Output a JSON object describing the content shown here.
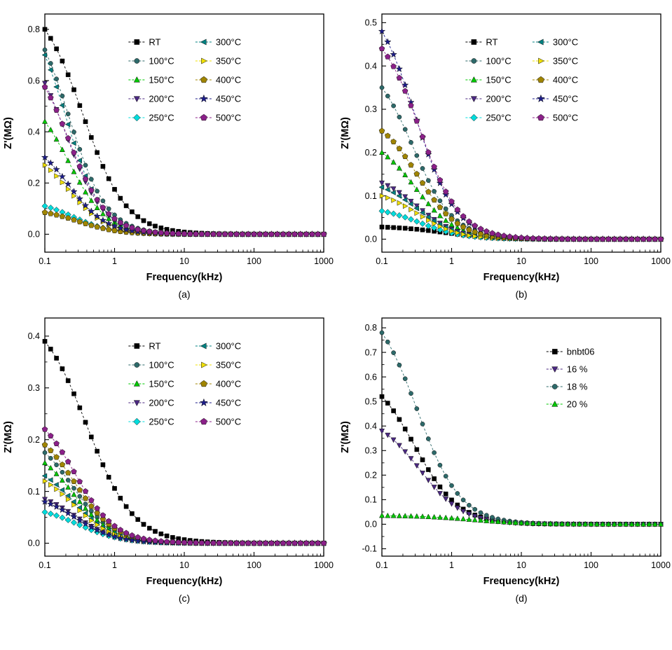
{
  "figure": {
    "description": "Four-panel impedance spectroscopy figure: real impedance Z' (Mohm) versus frequency (kHz, log scale)."
  },
  "chart_data": [
    {
      "type": "line",
      "caption": "(a)",
      "xlabel": "Frequency(kHz)",
      "ylabel": "Z'(MΩ)",
      "x_scale": "log",
      "xlim": [
        0.1,
        1000
      ],
      "ylim": [
        -0.07,
        0.86
      ],
      "xticks": [
        0.1,
        1,
        10,
        100,
        1000
      ],
      "xtick_labels": [
        "0.1",
        "1",
        "10",
        "100",
        "1000"
      ],
      "yticks": [
        0.0,
        0.2,
        0.4,
        0.6,
        0.8
      ],
      "ytick_labels": [
        "0.0",
        "0.2",
        "0.4",
        "0.6",
        "0.8"
      ],
      "legend_position": "upper-center, two columns",
      "curve_model": "z(f) = A/(1+(f/fc)^p), A chosen so z(0.1 kHz) = z0_Mohm; all curves decay to ~0 above ~10 kHz",
      "series": [
        {
          "name": "RT",
          "marker": "square",
          "color": "#000000",
          "z0_Mohm": 0.8,
          "fc_kHz": 0.35,
          "p": 1.4
        },
        {
          "name": "100°C",
          "marker": "circle",
          "color": "#2d6a6a",
          "z0_Mohm": 0.72,
          "fc_kHz": 0.22,
          "p": 1.6
        },
        {
          "name": "150°C",
          "marker": "triangle-up",
          "color": "#00c800",
          "z0_Mohm": 0.44,
          "fc_kHz": 0.22,
          "p": 1.6
        },
        {
          "name": "200°C",
          "marker": "triangle-down",
          "color": "#4b2882",
          "z0_Mohm": 0.59,
          "fc_kHz": 0.2,
          "p": 1.6
        },
        {
          "name": "250°C",
          "marker": "diamond",
          "color": "#00dcdc",
          "z0_Mohm": 0.11,
          "fc_kHz": 0.25,
          "p": 1.5
        },
        {
          "name": "300°C",
          "marker": "triangle-left",
          "color": "#008080",
          "z0_Mohm": 0.7,
          "fc_kHz": 0.2,
          "p": 1.7
        },
        {
          "name": "350°C",
          "marker": "triangle-right",
          "color": "#f0e000",
          "z0_Mohm": 0.27,
          "fc_kHz": 0.22,
          "p": 1.6
        },
        {
          "name": "400°C",
          "marker": "pentagon",
          "color": "#a08500",
          "z0_Mohm": 0.085,
          "fc_kHz": 0.3,
          "p": 1.5
        },
        {
          "name": "450°C",
          "marker": "star",
          "color": "#1c1c8a",
          "z0_Mohm": 0.3,
          "fc_kHz": 0.22,
          "p": 1.6
        },
        {
          "name": "500°C",
          "marker": "pentagon",
          "color": "#8b2089",
          "z0_Mohm": 0.575,
          "fc_kHz": 0.22,
          "p": 1.6
        }
      ]
    },
    {
      "type": "line",
      "caption": "(b)",
      "xlabel": "Frequency(kHz)",
      "ylabel": "Z'(MΩ)",
      "x_scale": "log",
      "xlim": [
        0.1,
        1000
      ],
      "ylim": [
        -0.03,
        0.52
      ],
      "xticks": [
        0.1,
        1,
        10,
        100,
        1000
      ],
      "xtick_labels": [
        "0.1",
        "1",
        "10",
        "100",
        "1000"
      ],
      "yticks": [
        0.0,
        0.1,
        0.2,
        0.3,
        0.4,
        0.5
      ],
      "ytick_labels": [
        "0.0",
        "0.1",
        "0.2",
        "0.3",
        "0.4",
        "0.5"
      ],
      "legend_position": "upper-center, two columns",
      "curve_model": "z(f) = A/(1+(f/fc)^p), A chosen so z(0.1 kHz) = z0_Mohm; all curves decay to ~0 above ~10 kHz",
      "series": [
        {
          "name": "RT",
          "marker": "square",
          "color": "#000000",
          "z0_Mohm": 0.028,
          "fc_kHz": 0.8,
          "p": 1.2
        },
        {
          "name": "100°C",
          "marker": "circle",
          "color": "#2d6a6a",
          "z0_Mohm": 0.35,
          "fc_kHz": 0.28,
          "p": 1.5
        },
        {
          "name": "150°C",
          "marker": "triangle-up",
          "color": "#00c800",
          "z0_Mohm": 0.2,
          "fc_kHz": 0.3,
          "p": 1.5
        },
        {
          "name": "200°C",
          "marker": "triangle-down",
          "color": "#4b2882",
          "z0_Mohm": 0.13,
          "fc_kHz": 0.32,
          "p": 1.5
        },
        {
          "name": "250°C",
          "marker": "diamond",
          "color": "#00dcdc",
          "z0_Mohm": 0.065,
          "fc_kHz": 0.35,
          "p": 1.4
        },
        {
          "name": "300°C",
          "marker": "triangle-left",
          "color": "#008080",
          "z0_Mohm": 0.12,
          "fc_kHz": 0.32,
          "p": 1.5
        },
        {
          "name": "350°C",
          "marker": "triangle-right",
          "color": "#f0e000",
          "z0_Mohm": 0.1,
          "fc_kHz": 0.33,
          "p": 1.5
        },
        {
          "name": "400°C",
          "marker": "pentagon",
          "color": "#a08500",
          "z0_Mohm": 0.25,
          "fc_kHz": 0.33,
          "p": 1.5
        },
        {
          "name": "450°C",
          "marker": "star",
          "color": "#1c1c8a",
          "z0_Mohm": 0.48,
          "fc_kHz": 0.3,
          "p": 1.5
        },
        {
          "name": "500°C",
          "marker": "pentagon",
          "color": "#8b2089",
          "z0_Mohm": 0.44,
          "fc_kHz": 0.35,
          "p": 1.5
        }
      ]
    },
    {
      "type": "line",
      "caption": "(c)",
      "xlabel": "Frequency(kHz)",
      "ylabel": "Z'(MΩ)",
      "x_scale": "log",
      "xlim": [
        0.1,
        1000
      ],
      "ylim": [
        -0.025,
        0.435
      ],
      "xticks": [
        0.1,
        1,
        10,
        100,
        1000
      ],
      "xtick_labels": [
        "0.1",
        "1",
        "10",
        "100",
        "1000"
      ],
      "yticks": [
        0.0,
        0.1,
        0.2,
        0.3,
        0.4
      ],
      "ytick_labels": [
        "0.0",
        "0.1",
        "0.2",
        "0.3",
        "0.4"
      ],
      "legend_position": "upper-center, two columns",
      "curve_model": "z(f) = A/(1+(f/fc)^p), A chosen so z(0.1 kHz) = z0_Mohm; all curves decay to ~0 above ~10 kHz",
      "series": [
        {
          "name": "RT",
          "marker": "square",
          "color": "#000000",
          "z0_Mohm": 0.39,
          "fc_kHz": 0.4,
          "p": 1.3
        },
        {
          "name": "100°C",
          "marker": "circle",
          "color": "#2d6a6a",
          "z0_Mohm": 0.175,
          "fc_kHz": 0.25,
          "p": 1.5
        },
        {
          "name": "150°C",
          "marker": "triangle-up",
          "color": "#00c800",
          "z0_Mohm": 0.155,
          "fc_kHz": 0.25,
          "p": 1.5
        },
        {
          "name": "200°C",
          "marker": "triangle-down",
          "color": "#4b2882",
          "z0_Mohm": 0.085,
          "fc_kHz": 0.28,
          "p": 1.5
        },
        {
          "name": "250°C",
          "marker": "diamond",
          "color": "#00dcdc",
          "z0_Mohm": 0.06,
          "fc_kHz": 0.3,
          "p": 1.4
        },
        {
          "name": "300°C",
          "marker": "triangle-left",
          "color": "#008080",
          "z0_Mohm": 0.13,
          "fc_kHz": 0.26,
          "p": 1.5
        },
        {
          "name": "350°C",
          "marker": "triangle-right",
          "color": "#f0e000",
          "z0_Mohm": 0.12,
          "fc_kHz": 0.26,
          "p": 1.5
        },
        {
          "name": "400°C",
          "marker": "pentagon",
          "color": "#a08500",
          "z0_Mohm": 0.19,
          "fc_kHz": 0.27,
          "p": 1.5
        },
        {
          "name": "450°C",
          "marker": "star",
          "color": "#1c1c8a",
          "z0_Mohm": 0.08,
          "fc_kHz": 0.28,
          "p": 1.5
        },
        {
          "name": "500°C",
          "marker": "pentagon",
          "color": "#8b2089",
          "z0_Mohm": 0.22,
          "fc_kHz": 0.27,
          "p": 1.5
        }
      ]
    },
    {
      "type": "line",
      "caption": "(d)",
      "xlabel": "Frequency(kHz)",
      "ylabel": "Z'(MΩ)",
      "x_scale": "log",
      "xlim": [
        0.1,
        1000
      ],
      "ylim": [
        -0.13,
        0.84
      ],
      "xticks": [
        0.1,
        1,
        10,
        100,
        1000
      ],
      "xtick_labels": [
        "0.1",
        "1",
        "10",
        "100",
        "1000"
      ],
      "yticks": [
        -0.1,
        0.0,
        0.1,
        0.2,
        0.3,
        0.4,
        0.5,
        0.6,
        0.7,
        0.8
      ],
      "ytick_labels": [
        "-0.1",
        "0.0",
        "0.1",
        "0.2",
        "0.3",
        "0.4",
        "0.5",
        "0.6",
        "0.7",
        "0.8"
      ],
      "legend_position": "upper-right, one column",
      "curve_model": "z(f) = A/(1+(f/fc)^p), A chosen so z(0.1 kHz) = z0_Mohm; all curves decay to ~0 above ~10 kHz",
      "series": [
        {
          "name": "bnbt06",
          "marker": "square",
          "color": "#000000",
          "z0_Mohm": 0.52,
          "fc_kHz": 0.3,
          "p": 1.4
        },
        {
          "name": "16 %",
          "marker": "triangle-down",
          "color": "#4b2882",
          "z0_Mohm": 0.38,
          "fc_kHz": 0.35,
          "p": 1.4
        },
        {
          "name": "18 %",
          "marker": "circle",
          "color": "#2d6a6a",
          "z0_Mohm": 0.78,
          "fc_kHz": 0.32,
          "p": 1.4
        },
        {
          "name": "20 %",
          "marker": "triangle-up",
          "color": "#00c800",
          "z0_Mohm": 0.035,
          "fc_kHz": 2.0,
          "p": 1.1
        }
      ]
    }
  ]
}
